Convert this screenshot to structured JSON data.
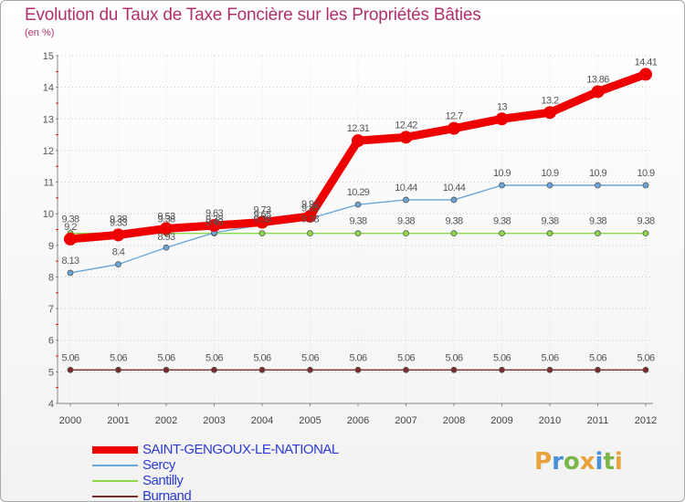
{
  "title": "Evolution du Taux de Taxe Foncière sur les Propriétés Bâties",
  "subtitle": "(en %)",
  "logo": {
    "text": "Proxiti",
    "colors": [
      "#e8a33c",
      "#4a90d9",
      "#7ab648",
      "#e8a33c",
      "#4a90d9",
      "#7ab648",
      "#e8a33c"
    ]
  },
  "chart_data": {
    "type": "line",
    "title": "Evolution du Taux de Taxe Foncière sur les Propriétés Bâties",
    "ylabel": "(en %)",
    "ylim": [
      4,
      15
    ],
    "yticks": [
      "4",
      "5",
      "6",
      "7",
      "8",
      "9",
      "10",
      "11",
      "12",
      "13",
      "14",
      "15"
    ],
    "categories": [
      "2000",
      "2001",
      "2002",
      "2003",
      "2004",
      "2005",
      "2006",
      "2007",
      "2008",
      "2009",
      "2010",
      "2011",
      "2012"
    ],
    "series": [
      {
        "name": "SAINT-GENGOUX-LE-NATIONAL",
        "color": "#ee0000",
        "values": [
          9.2,
          9.33,
          9.53,
          9.63,
          9.73,
          9.92,
          12.31,
          12.42,
          12.7,
          13,
          13.2,
          13.86,
          14.41
        ],
        "labels": [
          "9.2",
          "9.33",
          "9.53",
          "9.63",
          "9.73",
          "9.92",
          "12.31",
          "12.42",
          "12.7",
          "13",
          "13.2",
          "13.86",
          "14.41"
        ]
      },
      {
        "name": "Sercy",
        "color": "#6aa6d8",
        "values": [
          8.13,
          8.4,
          8.93,
          9.4,
          9.65,
          9.85,
          10.29,
          10.44,
          10.44,
          10.9,
          10.9,
          10.9,
          10.9
        ],
        "labels": [
          "8.13",
          "8.4",
          "8.93",
          "9.40",
          "9.65",
          "9.85",
          "10.29",
          "10.44",
          "10.44",
          "10.9",
          "10.9",
          "10.9",
          "10.9"
        ]
      },
      {
        "name": "Santilly",
        "color": "#8ed84a",
        "values": [
          9.38,
          9.38,
          9.38,
          9.38,
          9.38,
          9.38,
          9.38,
          9.38,
          9.38,
          9.38,
          9.38,
          9.38,
          9.38
        ],
        "labels": [
          "9.38",
          "9.38",
          "9.38",
          "9.38",
          "9.38",
          "9.38",
          "9.38",
          "9.38",
          "9.38",
          "9.38",
          "9.38",
          "9.38",
          "9.38"
        ]
      },
      {
        "name": "Burnand",
        "color": "#7a2b2b",
        "values": [
          5.06,
          5.06,
          5.06,
          5.06,
          5.06,
          5.06,
          5.06,
          5.06,
          5.06,
          5.06,
          5.06,
          5.06,
          5.06
        ],
        "labels": [
          "5.06",
          "5.06",
          "5.06",
          "5.06",
          "5.06",
          "5.06",
          "5.06",
          "5.06",
          "5.06",
          "5.06",
          "5.06",
          "5.06",
          "5.06"
        ]
      }
    ]
  }
}
